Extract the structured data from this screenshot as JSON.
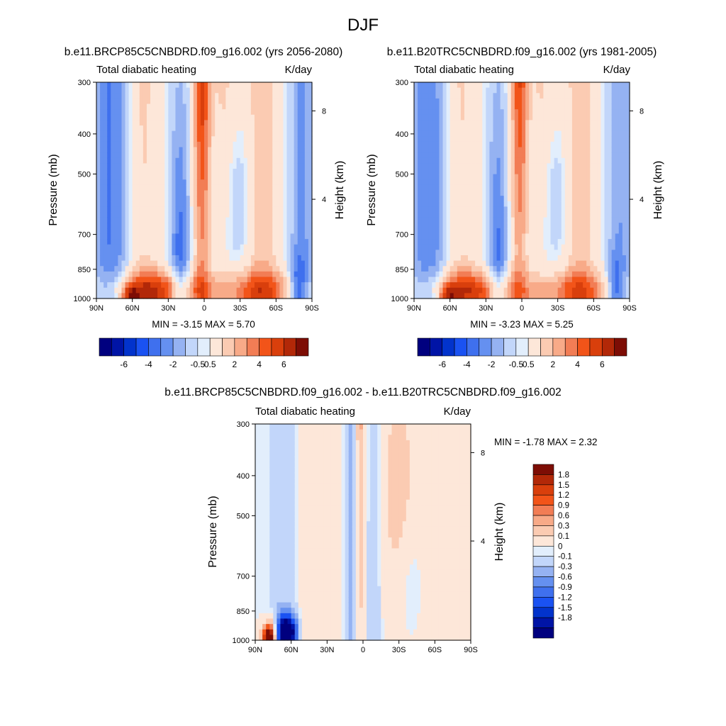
{
  "page": {
    "title": "DJF"
  },
  "panels": [
    {
      "title": "b.e11.BRCP85C5CNBDRD.f09_g16.002 (yrs 2056-2080)",
      "left_label": "Total diabatic heating",
      "right_label": "K/day",
      "y_label": "Pressure (mb)",
      "y2_label": "Height (km)",
      "stats": "MIN =  -3.15  MAX =   5.70"
    },
    {
      "title": "b.e11.B20TRC5CNBDRD.f09_g16.002 (yrs 1981-2005)",
      "left_label": "Total diabatic heating",
      "right_label": "K/day",
      "y_label": "Pressure (mb)",
      "y2_label": "Height (km)",
      "stats": "MIN =  -3.23  MAX =   5.25"
    },
    {
      "title": "b.e11.BRCP85C5CNBDRD.f09_g16.002 - b.e11.B20TRC5CNBDRD.f09_g16.002",
      "left_label": "Total diabatic heating",
      "right_label": "K/day",
      "y_label": "Pressure (mb)",
      "y2_label": "Height (km)",
      "stats": "MIN = -1.78  MAX =  2.32"
    }
  ],
  "colors": {
    "scale": [
      "#00007f",
      "#0014a6",
      "#0233cc",
      "#1a52f2",
      "#3f70ee",
      "#6590f0",
      "#95b2f2",
      "#c2d6fa",
      "#e2eefc",
      "#fde7d9",
      "#fbcbb2",
      "#f8aa88",
      "#f27d55",
      "#f25419",
      "#d93f0c",
      "#b22808",
      "#7d0d05"
    ]
  },
  "chart_data": [
    {
      "type": "heatmap",
      "title": "b.e11.BRCP85C5CNBDRD.f09_g16.002 (yrs 2056-2080)",
      "variable": "Total diabatic heating",
      "units": "K/day",
      "xlabel": "",
      "ylabel": "Pressure (mb)",
      "y2label": "Height (km)",
      "x_ticks": [
        "90N",
        "60N",
        "30N",
        "0",
        "30S",
        "60S",
        "90S"
      ],
      "x_tick_values": [
        90,
        60,
        30,
        0,
        -30,
        -60,
        -90
      ],
      "y_ticks": [
        "300",
        "400",
        "500",
        "700",
        "850",
        "1000"
      ],
      "y_tick_values": [
        300,
        400,
        500,
        700,
        850,
        1000
      ],
      "y2_ticks": [
        "8",
        "4"
      ],
      "y2_tick_values": [
        8,
        4
      ],
      "xlim": [
        90,
        -90
      ],
      "ylim": [
        1000,
        300
      ],
      "min": -3.15,
      "max": 5.7,
      "colorbar_labels": [
        "-6",
        "-4",
        "-2",
        "-0.5",
        "0.5",
        "2",
        "4",
        "6"
      ],
      "colorbar_levels": [
        -7,
        -6,
        -5,
        -4,
        -3,
        -2,
        -1,
        -0.5,
        0.5,
        1,
        2,
        3,
        4,
        5,
        6,
        7
      ]
    },
    {
      "type": "heatmap",
      "title": "b.e11.B20TRC5CNBDRD.f09_g16.002 (yrs 1981-2005)",
      "variable": "Total diabatic heating",
      "units": "K/day",
      "xlabel": "",
      "ylabel": "Pressure (mb)",
      "y2label": "Height (km)",
      "x_ticks": [
        "90N",
        "60N",
        "30N",
        "0",
        "30S",
        "60S",
        "90S"
      ],
      "x_tick_values": [
        90,
        60,
        30,
        0,
        -30,
        -60,
        -90
      ],
      "y_ticks": [
        "300",
        "400",
        "500",
        "700",
        "850",
        "1000"
      ],
      "y_tick_values": [
        300,
        400,
        500,
        700,
        850,
        1000
      ],
      "y2_ticks": [
        "8",
        "4"
      ],
      "y2_tick_values": [
        8,
        4
      ],
      "xlim": [
        90,
        -90
      ],
      "ylim": [
        1000,
        300
      ],
      "min": -3.23,
      "max": 5.25,
      "colorbar_labels": [
        "-6",
        "-4",
        "-2",
        "-0.5",
        "0.5",
        "2",
        "4",
        "6"
      ],
      "colorbar_levels": [
        -7,
        -6,
        -5,
        -4,
        -3,
        -2,
        -1,
        -0.5,
        0.5,
        1,
        2,
        3,
        4,
        5,
        6,
        7
      ]
    },
    {
      "type": "heatmap",
      "title": "b.e11.BRCP85C5CNBDRD.f09_g16.002 - b.e11.B20TRC5CNBDRD.f09_g16.002",
      "variable": "Total diabatic heating",
      "units": "K/day",
      "xlabel": "",
      "ylabel": "Pressure (mb)",
      "y2label": "Height (km)",
      "x_ticks": [
        "90N",
        "60N",
        "30N",
        "0",
        "30S",
        "60S",
        "90S"
      ],
      "x_tick_values": [
        90,
        60,
        30,
        0,
        -30,
        -60,
        -90
      ],
      "y_ticks": [
        "300",
        "400",
        "500",
        "700",
        "850",
        "1000"
      ],
      "y_tick_values": [
        300,
        400,
        500,
        700,
        850,
        1000
      ],
      "y2_ticks": [
        "8",
        "4"
      ],
      "y2_tick_values": [
        8,
        4
      ],
      "xlim": [
        90,
        -90
      ],
      "ylim": [
        1000,
        300
      ],
      "min": -1.78,
      "max": 2.32,
      "colorbar_labels": [
        "1.8",
        "1.5",
        "1.2",
        "0.9",
        "0.6",
        "0.3",
        "0.1",
        "0",
        "-0.1",
        "-0.3",
        "-0.6",
        "-0.9",
        "-1.2",
        "-1.5",
        "-1.8"
      ],
      "colorbar_levels": [
        1.8,
        1.5,
        1.2,
        0.9,
        0.6,
        0.3,
        0.1,
        0,
        -0.1,
        -0.3,
        -0.6,
        -0.9,
        -1.2,
        -1.5,
        -1.8
      ]
    }
  ]
}
